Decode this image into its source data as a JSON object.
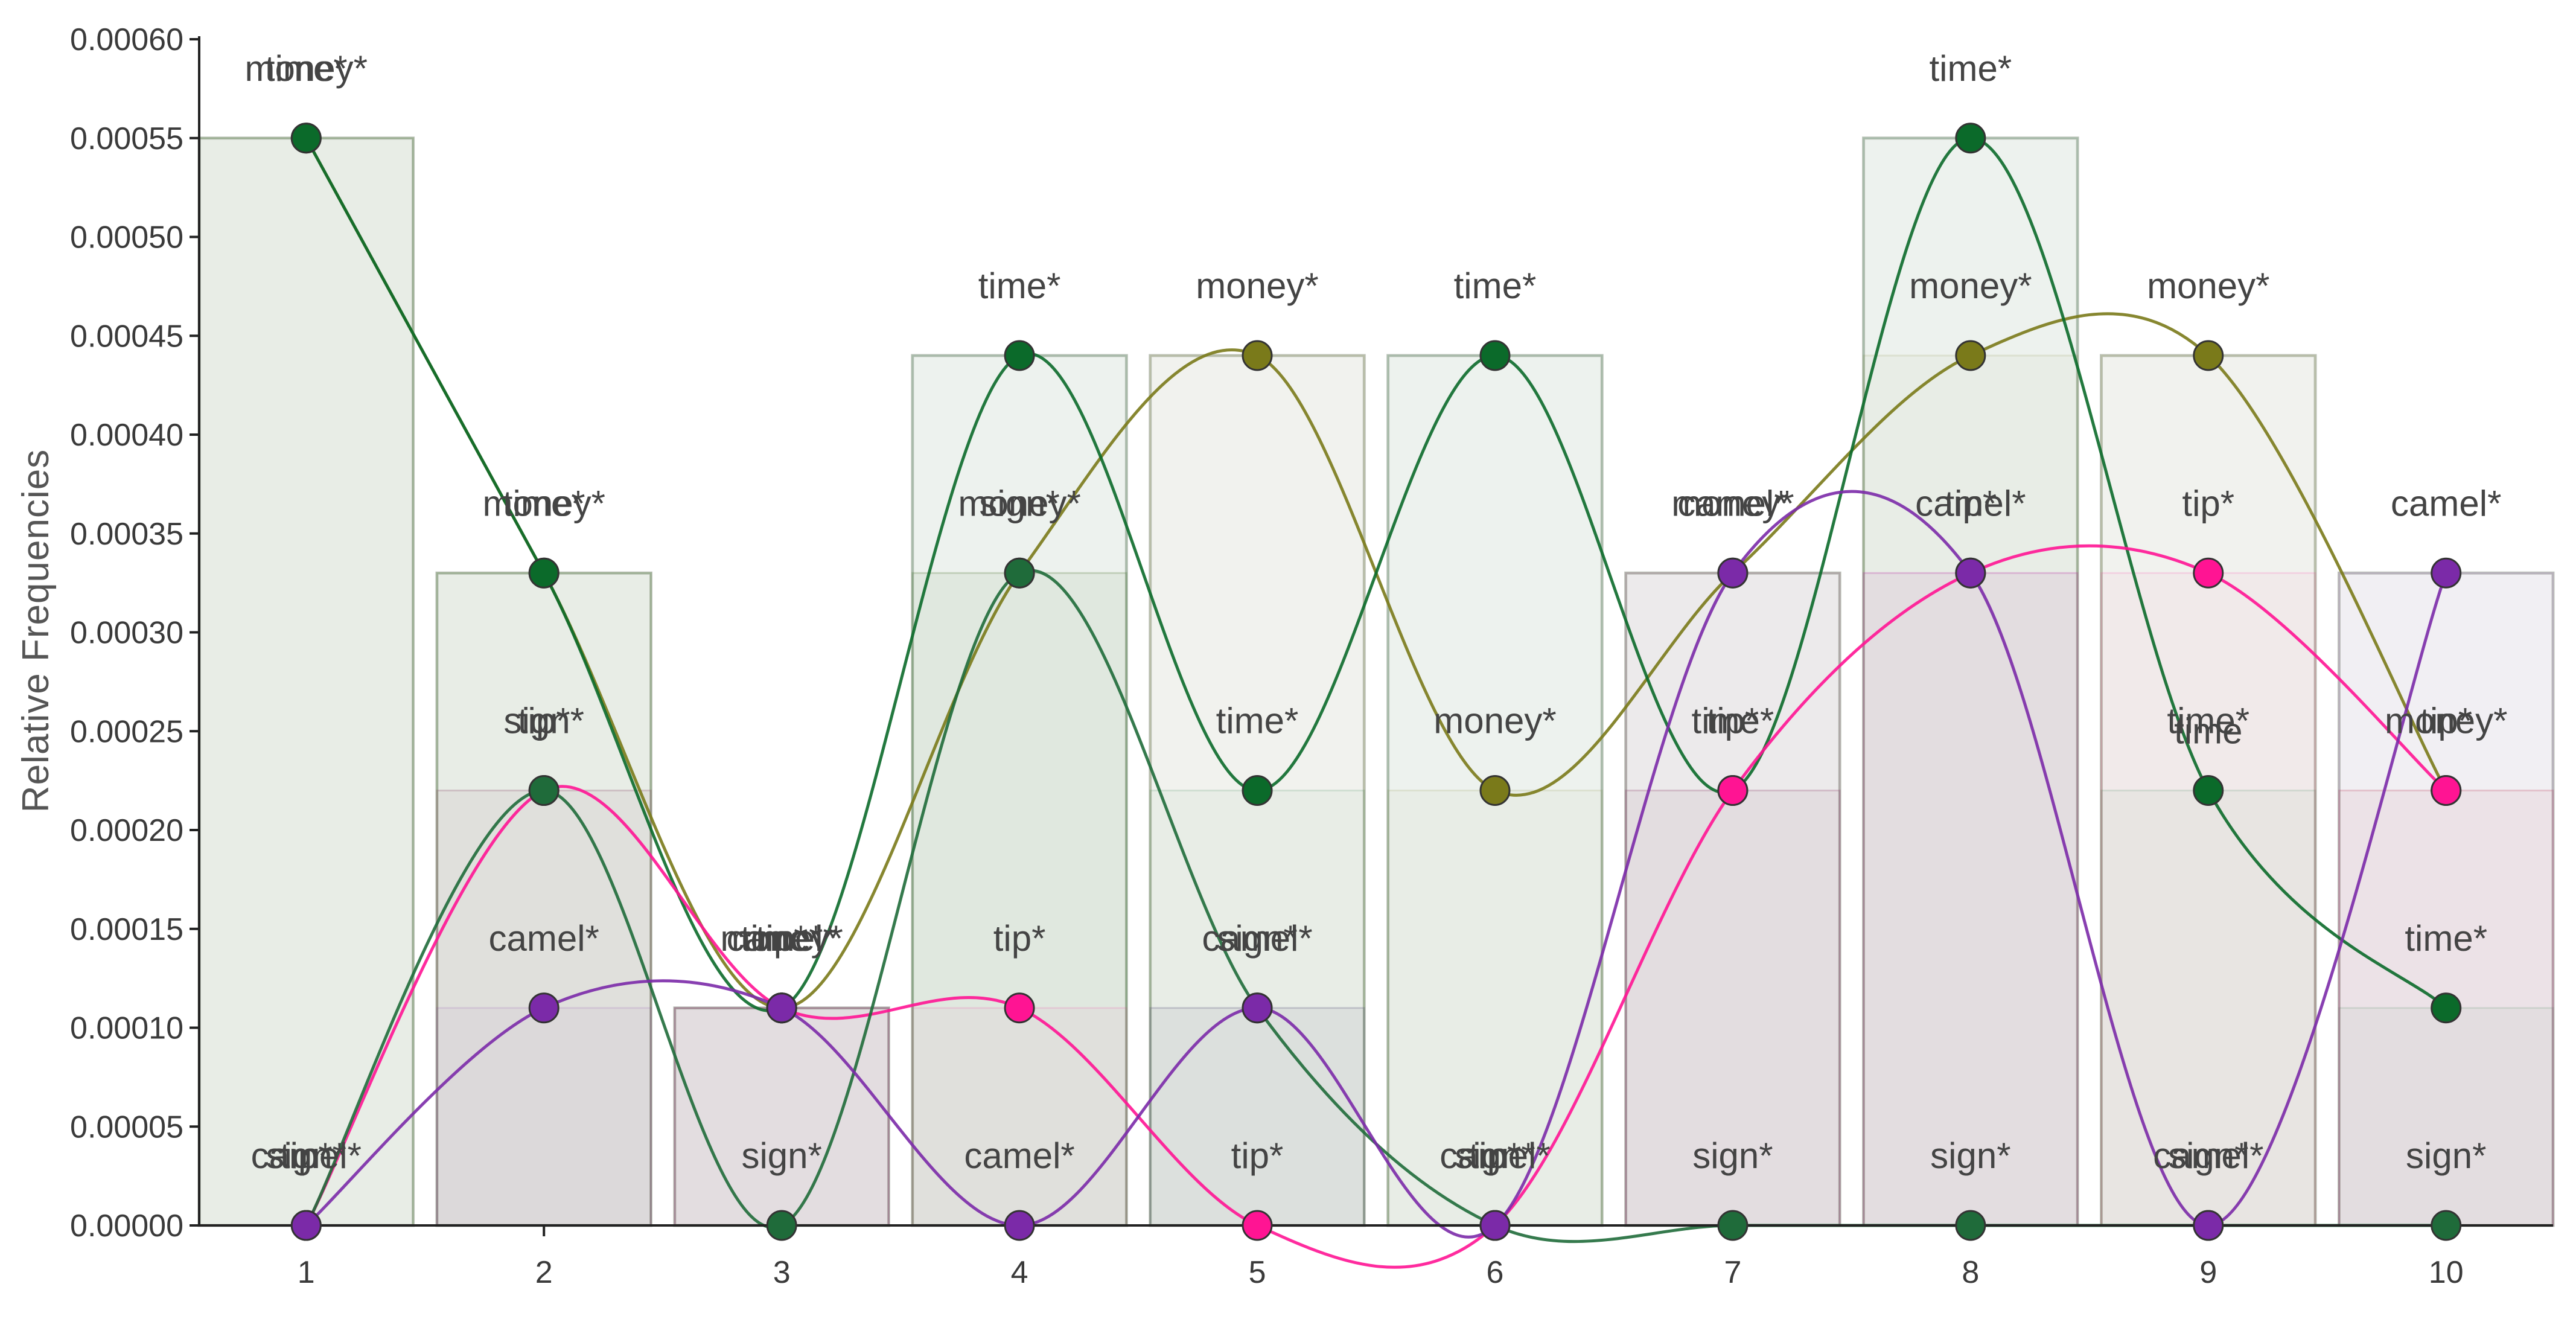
{
  "chart_data": {
    "type": "line",
    "title": "",
    "xlabel": "",
    "ylabel": "Relative Frequencies",
    "x": [
      1,
      2,
      3,
      4,
      5,
      6,
      7,
      8,
      9,
      10
    ],
    "xlim": [
      0.55,
      10.45
    ],
    "ylim": [
      0,
      0.0006
    ],
    "y_ticks": [
      "0.00000",
      "0.00005",
      "0.00010",
      "0.00015",
      "0.00020",
      "0.00025",
      "0.00030",
      "0.00035",
      "0.00040",
      "0.00045",
      "0.00050",
      "0.00055",
      "0.00060"
    ],
    "x_ticks": [
      "1",
      "2",
      "3",
      "4",
      "5",
      "6",
      "7",
      "8",
      "9",
      "10"
    ],
    "grid": false,
    "legend": "none",
    "bands": [
      0.00055,
      0.00033,
      0.00011,
      0.00044,
      0.00044,
      0.00044,
      0.00033,
      0.00055,
      0.00044,
      0.00033
    ],
    "series": [
      {
        "point_label": "money*",
        "color": "#7a7a1a",
        "values": [
          0.00055,
          0.00033,
          0.00011,
          0.00033,
          0.00044,
          0.00022,
          0.00033,
          0.00044,
          0.00044,
          0.00022
        ]
      },
      {
        "point_label": "time*",
        "color": "#0b6a2a",
        "values": [
          0.00055,
          0.00033,
          0.00011,
          0.00044,
          0.00022,
          0.00044,
          0.00022,
          0.00055,
          0.00022,
          0.00011
        ]
      },
      {
        "point_label": "tip*",
        "color": "#ff1493",
        "values": [
          0.0,
          0.00022,
          0.00011,
          0.00011,
          0.0,
          0.0,
          0.00022,
          0.00033,
          0.00033,
          0.00022
        ]
      },
      {
        "point_label": "sign*",
        "color": "#1f6b3a",
        "values": [
          0.0,
          0.00022,
          0.0,
          0.00033,
          0.00011,
          0.0,
          0.0,
          0.0,
          0.0,
          0.0
        ]
      },
      {
        "point_label": "camel*",
        "color": "#7b2aa8",
        "values": [
          0.0,
          0.00011,
          0.00011,
          0.0,
          0.00011,
          0.0,
          0.00033,
          0.00033,
          0.0,
          0.00033
        ]
      }
    ],
    "extra_labels": [
      {
        "x": 9,
        "y": 0.00025,
        "text": "time"
      }
    ]
  }
}
